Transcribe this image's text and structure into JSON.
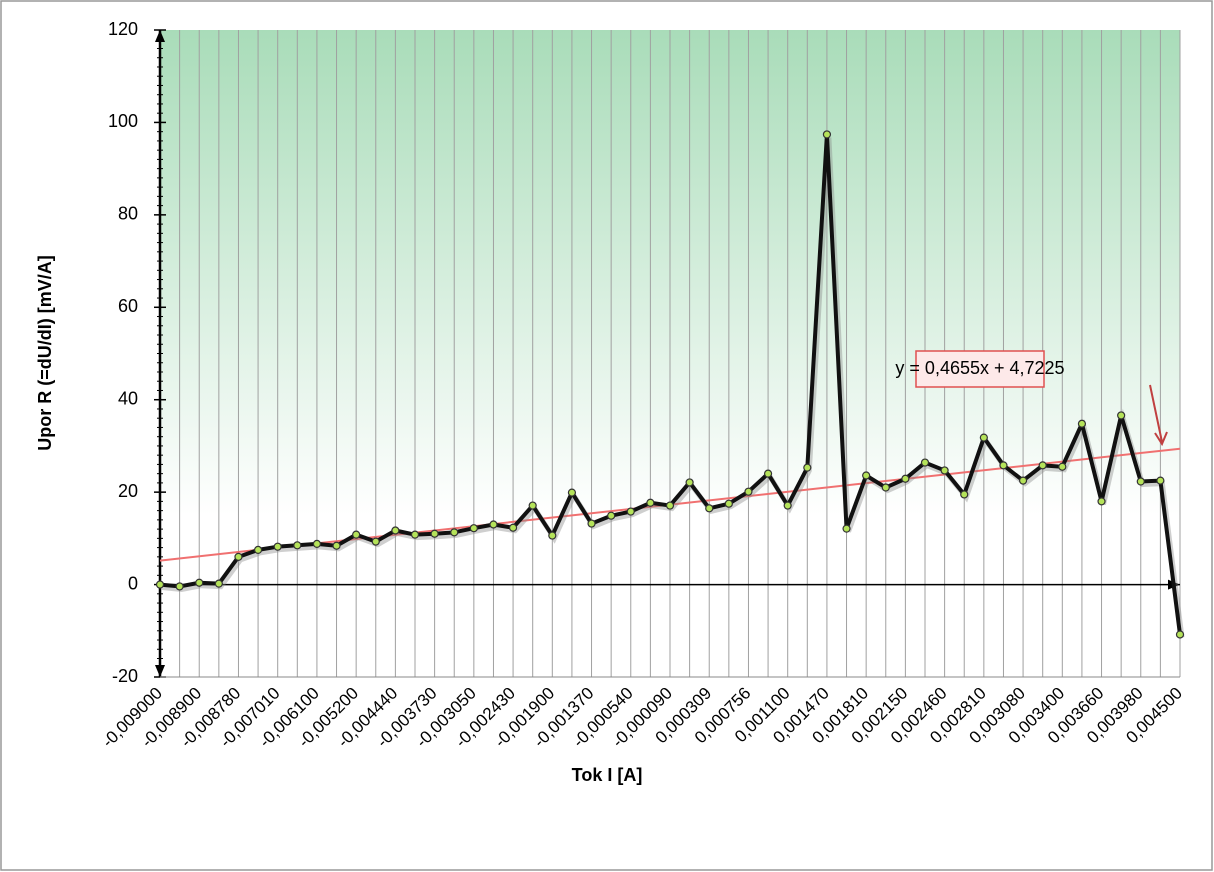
{
  "chart_data": {
    "type": "line",
    "x_label": "Tok I [A]",
    "y_label": "Upor R (=dU/dI) [mV/A]",
    "categories": [
      "-0,009000",
      null,
      "-0,008900",
      null,
      "-0,008780",
      null,
      "-0,007010",
      null,
      "-0,006100",
      null,
      "-0,005200",
      null,
      "-0,004440",
      null,
      "-0,003730",
      null,
      "-0,003050",
      null,
      "-0,002430",
      null,
      "-0,001900",
      null,
      "-0,001370",
      null,
      "-0,000540",
      null,
      "-0,000090",
      null,
      "0,000309",
      null,
      "0,000756",
      null,
      "0,001100",
      null,
      "0,001470",
      null,
      "0,001810",
      null,
      "0,002150",
      null,
      "0,002460",
      null,
      "0,002810",
      null,
      "0,003080",
      null,
      "0,003400",
      null,
      "0,003660",
      null,
      "0,003980",
      null,
      "0,004500"
    ],
    "series": [
      {
        "name": "Upor R",
        "color": "#111111",
        "marker_color": "#b5e35a",
        "values": [
          0,
          -0.4,
          0.4,
          0.2,
          6,
          7.5,
          8.2,
          8.5,
          8.8,
          8.4,
          10.8,
          9.3,
          11.7,
          10.8,
          11,
          11.3,
          12.2,
          13,
          12.3,
          17.1,
          10.6,
          19.9,
          13.2,
          14.9,
          15.8,
          17.7,
          17.1,
          22.1,
          16.5,
          17.5,
          20.1,
          24,
          17.1,
          25.3,
          97.4,
          12.1,
          23.6,
          21,
          22.9,
          26.4,
          24.7,
          19.5,
          31.8,
          25.8,
          22.5,
          25.8,
          25.5,
          34.8,
          18,
          36.6,
          22.3,
          22.5,
          -10.8
        ]
      }
    ],
    "trendline": {
      "label": "y = 0,4655x + 4,7225",
      "slope": 0.4655,
      "intercept": 4.7225,
      "color": "#f07070"
    },
    "ylim": [
      -20,
      120
    ],
    "yticks": [
      -20,
      0,
      20,
      40,
      60,
      80,
      100,
      120
    ],
    "grid": "x"
  }
}
